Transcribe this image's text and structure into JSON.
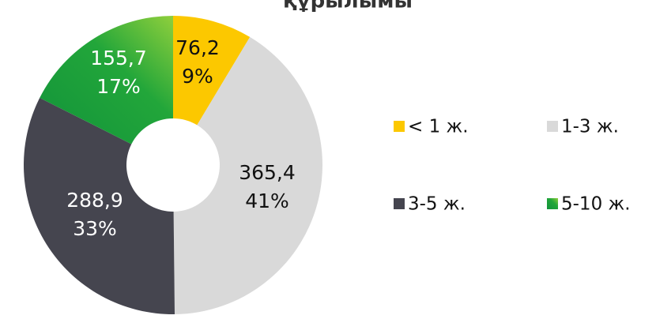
{
  "chart_data": {
    "type": "donut",
    "title": "құрылымы",
    "categories": [
      "< 1 ж.",
      "1-3 ж.",
      "3-5 ж.",
      "5-10 ж."
    ],
    "values": [
      76.2,
      365.4,
      288.9,
      155.7
    ],
    "value_labels": [
      "76,2",
      "365,4",
      "288,9",
      "155,7"
    ],
    "percents": [
      9,
      41,
      33,
      17
    ],
    "percent_labels": [
      "9%",
      "41%",
      "33%",
      "17%"
    ],
    "colors": [
      "#fcc800",
      "#d9d9d9",
      "#45454f",
      "#1f9e3a"
    ]
  }
}
